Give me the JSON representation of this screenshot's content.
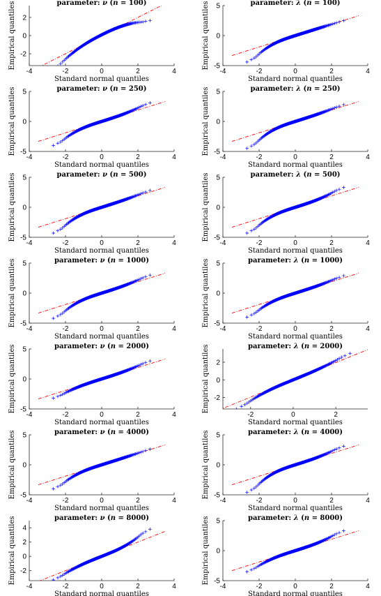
{
  "chart_data": [
    {
      "type": "scatter",
      "title": {
        "prefix": "parameter: ",
        "param": "ν",
        "n_label": " (n = ",
        "n_value": "100",
        "suffix": ")"
      },
      "xlabel": "Standard normal quantiles",
      "ylabel": "Empirical quantiles",
      "xlim": [
        -4,
        4
      ],
      "ylim": [
        -3.3,
        3.3
      ],
      "xticks": [
        -4,
        -2,
        0,
        2,
        4
      ],
      "yticks": [
        -2,
        0,
        2
      ],
      "grid": false,
      "series": [
        {
          "marker": "+",
          "color": "#0000ff",
          "low_tail": -3.2,
          "high_tail": 2.2,
          "curvature": -0.25
        }
      ],
      "reference_line": {
        "slope": 1.0,
        "intercept": 0,
        "color": "#ff0000",
        "style": "dash-dot"
      }
    },
    {
      "type": "scatter",
      "title": {
        "prefix": "parameter: ",
        "param": "λ",
        "n_label": " (n = ",
        "n_value": "100",
        "suffix": ")"
      },
      "xlabel": "",
      "ylabel": "",
      "xlim": [
        -4,
        4
      ],
      "ylim": [
        -5,
        5
      ],
      "xticks": [
        -4,
        -2,
        0,
        2,
        4
      ],
      "yticks": [
        -5,
        0,
        5
      ],
      "grid": false,
      "series": [
        {
          "marker": "+",
          "color": "#0000ff",
          "low_tail": -4.4,
          "high_tail": 2.5,
          "curvature": 0
        }
      ],
      "reference_line": {
        "slope": 0.95,
        "intercept": 0,
        "color": "#ff0000",
        "style": "dash-dot"
      }
    },
    {
      "type": "scatter",
      "title": {
        "prefix": "parameter: ",
        "param": "ν",
        "n_label": " (n = ",
        "n_value": "250",
        "suffix": ")"
      },
      "xlabel": "Standard normal quantiles",
      "ylabel": "Empirical quantiles",
      "xlim": [
        -4,
        4
      ],
      "ylim": [
        -5,
        5
      ],
      "xticks": [
        -4,
        -2,
        0,
        2,
        4
      ],
      "yticks": [
        -5,
        0,
        5
      ],
      "grid": false,
      "series": [
        {
          "marker": "+",
          "color": "#0000ff",
          "low_tail": -4.0,
          "high_tail": 3.1,
          "curvature": 0
        }
      ],
      "reference_line": {
        "slope": 0.95,
        "intercept": 0,
        "color": "#ff0000",
        "style": "dash-dot"
      }
    },
    {
      "type": "scatter",
      "title": {
        "prefix": "parameter: ",
        "param": "λ",
        "n_label": " (n = ",
        "n_value": "250",
        "suffix": ")"
      },
      "xlabel": "",
      "ylabel": "",
      "xlim": [
        -4,
        4
      ],
      "ylim": [
        -5,
        5
      ],
      "xticks": [
        -4,
        -2,
        0,
        2,
        4
      ],
      "yticks": [
        -5,
        0,
        5
      ],
      "grid": false,
      "series": [
        {
          "marker": "+",
          "color": "#0000ff",
          "low_tail": -4.5,
          "high_tail": 2.8,
          "curvature": 0
        }
      ],
      "reference_line": {
        "slope": 0.95,
        "intercept": 0,
        "color": "#ff0000",
        "style": "dash-dot"
      }
    },
    {
      "type": "scatter",
      "title": {
        "prefix": "parameter: ",
        "param": "ν",
        "n_label": " (n = ",
        "n_value": "500",
        "suffix": ")"
      },
      "xlabel": "Standard normal quantiles",
      "ylabel": "Empirical quantiles",
      "xlim": [
        -4,
        4
      ],
      "ylim": [
        -5,
        5
      ],
      "xticks": [
        -4,
        -2,
        0,
        2,
        4
      ],
      "yticks": [
        -5,
        0,
        5
      ],
      "grid": false,
      "series": [
        {
          "marker": "+",
          "color": "#0000ff",
          "low_tail": -4.3,
          "high_tail": 2.8,
          "curvature": 0
        }
      ],
      "reference_line": {
        "slope": 0.95,
        "intercept": 0,
        "color": "#ff0000",
        "style": "dash-dot"
      }
    },
    {
      "type": "scatter",
      "title": {
        "prefix": "parameter: ",
        "param": "λ",
        "n_label": " (n = ",
        "n_value": "500",
        "suffix": ")"
      },
      "xlabel": "",
      "ylabel": "",
      "xlim": [
        -4,
        4
      ],
      "ylim": [
        -5,
        5
      ],
      "xticks": [
        -4,
        -2,
        0,
        2,
        4
      ],
      "yticks": [
        -5,
        0,
        5
      ],
      "grid": false,
      "series": [
        {
          "marker": "+",
          "color": "#0000ff",
          "low_tail": -4.3,
          "high_tail": 3.3,
          "curvature": 0
        }
      ],
      "reference_line": {
        "slope": 0.95,
        "intercept": 0,
        "color": "#ff0000",
        "style": "dash-dot"
      }
    },
    {
      "type": "scatter",
      "title": {
        "prefix": "parameter: ",
        "param": "ν",
        "n_label": " (n = ",
        "n_value": "1000",
        "suffix": ")"
      },
      "xlabel": "Standard normal quantiles",
      "ylabel": "Empirical quantiles",
      "xlim": [
        -4,
        4
      ],
      "ylim": [
        -5,
        5
      ],
      "xticks": [
        -4,
        -2,
        0,
        2,
        4
      ],
      "yticks": [
        -5,
        0,
        5
      ],
      "grid": false,
      "series": [
        {
          "marker": "+",
          "color": "#0000ff",
          "low_tail": -4.2,
          "high_tail": 3.0,
          "curvature": 0
        }
      ],
      "reference_line": {
        "slope": 0.95,
        "intercept": 0,
        "color": "#ff0000",
        "style": "dash-dot"
      }
    },
    {
      "type": "scatter",
      "title": {
        "prefix": "parameter: ",
        "param": "λ",
        "n_label": " (n = ",
        "n_value": "1000",
        "suffix": ")"
      },
      "xlabel": "",
      "ylabel": "",
      "xlim": [
        -4,
        4
      ],
      "ylim": [
        -5,
        5
      ],
      "xticks": [
        -4,
        -2,
        0,
        2,
        4
      ],
      "yticks": [
        -5,
        0,
        5
      ],
      "grid": false,
      "series": [
        {
          "marker": "+",
          "color": "#0000ff",
          "low_tail": -4.0,
          "high_tail": 2.9,
          "curvature": 0
        }
      ],
      "reference_line": {
        "slope": 0.95,
        "intercept": 0,
        "color": "#ff0000",
        "style": "dash-dot"
      }
    },
    {
      "type": "scatter",
      "title": {
        "prefix": "parameter: ",
        "param": "ν",
        "n_label": " (n = ",
        "n_value": "2000",
        "suffix": ")"
      },
      "xlabel": "Standard normal quantiles",
      "ylabel": "Empirical quantiles",
      "xlim": [
        -4,
        4
      ],
      "ylim": [
        -5,
        5
      ],
      "xticks": [
        -4,
        -2,
        0,
        2,
        4
      ],
      "yticks": [
        -5,
        0,
        5
      ],
      "grid": false,
      "series": [
        {
          "marker": "+",
          "color": "#0000ff",
          "low_tail": -3.2,
          "high_tail": 3.0,
          "curvature": 0
        }
      ],
      "reference_line": {
        "slope": 0.95,
        "intercept": 0,
        "color": "#ff0000",
        "style": "dash-dot"
      }
    },
    {
      "type": "scatter",
      "title": {
        "prefix": "parameter: ",
        "param": "λ",
        "n_label": " (n = ",
        "n_value": "2000",
        "suffix": ")"
      },
      "xlabel": "",
      "ylabel": "",
      "xlim": [
        -3.3,
        3.5
      ],
      "ylim": [
        -3.3,
        3.5
      ],
      "xticks": [
        -4,
        -2,
        0,
        2,
        4
      ],
      "yticks": [
        -2,
        0,
        2
      ],
      "grid": false,
      "series": [
        {
          "marker": "+",
          "color": "#0000ff",
          "low_tail": -3.3,
          "high_tail": 3.0,
          "curvature": 0
        }
      ],
      "reference_line": {
        "slope": 0.98,
        "intercept": 0,
        "color": "#ff0000",
        "style": "dash-dot"
      }
    },
    {
      "type": "scatter",
      "title": {
        "prefix": "parameter: ",
        "param": "ν",
        "n_label": " (n = ",
        "n_value": "4000",
        "suffix": ")"
      },
      "xlabel": "Standard normal quantiles",
      "ylabel": "Empirical quantiles",
      "xlim": [
        -4,
        4
      ],
      "ylim": [
        -5,
        5
      ],
      "xticks": [
        -4,
        -2,
        0,
        2,
        4
      ],
      "yticks": [
        -5,
        0,
        5
      ],
      "grid": false,
      "series": [
        {
          "marker": "+",
          "color": "#0000ff",
          "low_tail": -4.0,
          "high_tail": 2.6,
          "curvature": 0
        }
      ],
      "reference_line": {
        "slope": 0.95,
        "intercept": 0,
        "color": "#ff0000",
        "style": "dash-dot"
      }
    },
    {
      "type": "scatter",
      "title": {
        "prefix": "parameter: ",
        "param": "λ",
        "n_label": " (n = ",
        "n_value": "4000",
        "suffix": ")"
      },
      "xlabel": "",
      "ylabel": "",
      "xlim": [
        -4,
        4
      ],
      "ylim": [
        -5,
        5
      ],
      "xticks": [
        -4,
        -2,
        0,
        2,
        4
      ],
      "yticks": [
        -5,
        0,
        5
      ],
      "grid": false,
      "series": [
        {
          "marker": "+",
          "color": "#0000ff",
          "low_tail": -4.6,
          "high_tail": 3.1,
          "curvature": 0
        }
      ],
      "reference_line": {
        "slope": 0.95,
        "intercept": 0,
        "color": "#ff0000",
        "style": "dash-dot"
      }
    },
    {
      "type": "scatter",
      "title": {
        "prefix": "parameter: ",
        "param": "ν",
        "n_label": " (n = ",
        "n_value": "8000",
        "suffix": ")"
      },
      "xlabel": "Standard normal quantiles",
      "ylabel": "Empirical quantiles",
      "xlim": [
        -4,
        4
      ],
      "ylim": [
        -3.4,
        5.0
      ],
      "xticks": [
        -4,
        -2,
        0,
        2,
        4
      ],
      "yticks": [
        -2,
        0,
        2,
        4
      ],
      "grid": false,
      "series": [
        {
          "marker": "+",
          "color": "#0000ff",
          "low_tail": -3.3,
          "high_tail": 3.8,
          "curvature": 0
        }
      ],
      "reference_line": {
        "slope": 1.0,
        "intercept": 0,
        "color": "#ff0000",
        "style": "dash-dot"
      }
    },
    {
      "type": "scatter",
      "title": {
        "prefix": "parameter: ",
        "param": "λ",
        "n_label": " (n = ",
        "n_value": "8000",
        "suffix": ")"
      },
      "xlabel": "Standard normal quantiles",
      "ylabel": "",
      "xlim": [
        -4,
        4
      ],
      "ylim": [
        -5,
        5
      ],
      "xticks": [
        -4,
        -2,
        0,
        2,
        4
      ],
      "yticks": [
        -5,
        0,
        5
      ],
      "grid": false,
      "series": [
        {
          "marker": "+",
          "color": "#0000ff",
          "low_tail": -3.5,
          "high_tail": 3.3,
          "curvature": 0
        }
      ],
      "reference_line": {
        "slope": 0.95,
        "intercept": 0,
        "color": "#ff0000",
        "style": "dash-dot"
      }
    }
  ]
}
